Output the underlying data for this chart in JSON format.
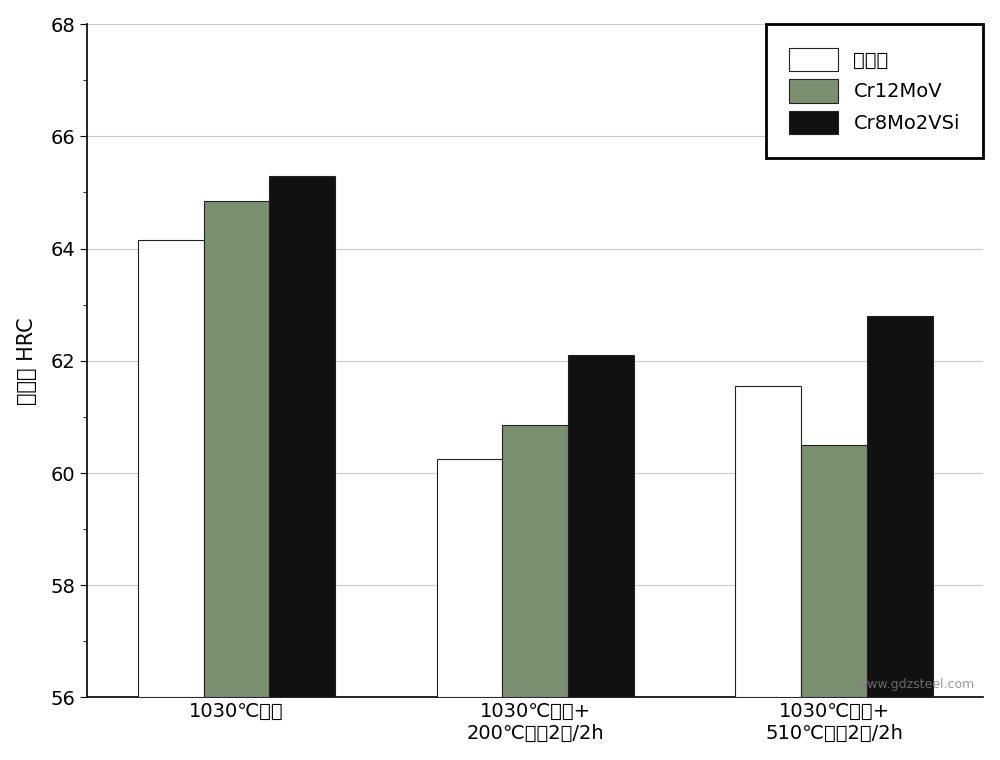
{
  "categories": [
    "1030℃淣火",
    "1030℃淣火+\n200℃回火2次/2h",
    "1030℃淣火+\n510℃回火2次/2h"
  ],
  "series": {
    "发明钔": [
      64.15,
      60.25,
      61.55
    ],
    "Cr12MoV": [
      64.85,
      60.85,
      60.5
    ],
    "Cr8Mo2VSi": [
      65.3,
      62.1,
      62.8
    ]
  },
  "bar_colors": {
    "发明钔": "#ffffff",
    "Cr12MoV": "#7a9070",
    "Cr8Mo2VSi": "#111111"
  },
  "bar_edgecolor": "#222222",
  "ylabel": "硬度， HRC",
  "ylim": [
    56,
    68
  ],
  "yticks": [
    56,
    58,
    60,
    62,
    64,
    66,
    68
  ],
  "bar_width": 0.22,
  "background_color": "#ffffff",
  "plot_bg_color": "#ffffff",
  "grid_color": "#cccccc",
  "legend_fontsize": 14,
  "tick_fontsize": 14,
  "ylabel_fontsize": 15,
  "watermark": "www.gdzsteel.com"
}
